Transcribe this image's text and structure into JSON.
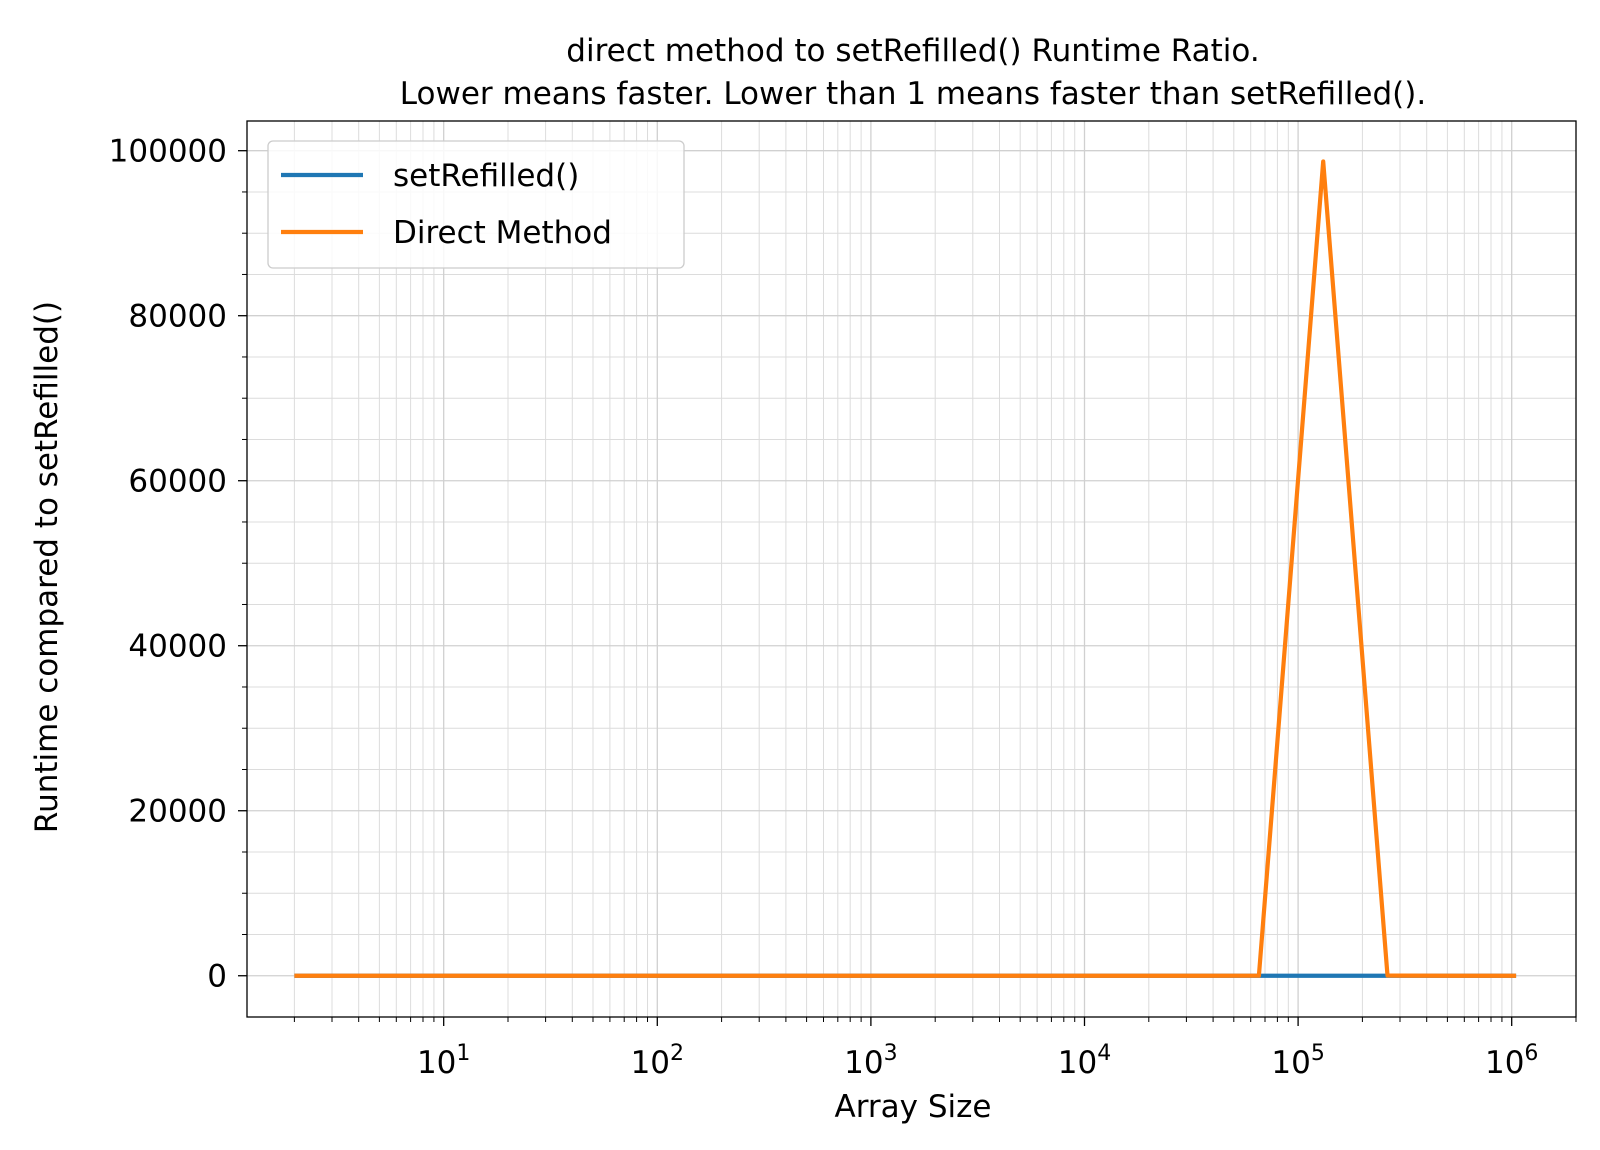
{
  "chart_data": {
    "type": "line",
    "title": "direct method to setRefilled() Runtime Ratio.",
    "subtitle": "Lower means faster. Lower than 1 means faster than setRefilled().",
    "xlabel": "Array Size",
    "ylabel": "Runtime compared to setRefilled()",
    "x_scale": "log",
    "y_scale": "linear",
    "grid": true,
    "legend_position": "top-left",
    "xlim": [
      1.2,
      2000000
    ],
    "ylim": [
      -5000,
      103600
    ],
    "x_ticks": [
      10,
      100,
      1000,
      10000,
      100000,
      1000000
    ],
    "x_tick_labels": [
      {
        "base": "10",
        "exp": "1"
      },
      {
        "base": "10",
        "exp": "2"
      },
      {
        "base": "10",
        "exp": "3"
      },
      {
        "base": "10",
        "exp": "4"
      },
      {
        "base": "10",
        "exp": "5"
      },
      {
        "base": "10",
        "exp": "6"
      }
    ],
    "y_ticks": [
      0,
      20000,
      40000,
      60000,
      80000,
      100000
    ],
    "y_tick_labels": [
      "0",
      "20000",
      "40000",
      "60000",
      "80000",
      "100000"
    ],
    "x": [
      2,
      4,
      8,
      16,
      32,
      64,
      128,
      256,
      512,
      1024,
      2048,
      4096,
      8192,
      16384,
      32768,
      65536,
      131072,
      262144,
      524288,
      1048576
    ],
    "series": [
      {
        "name": "setRefilled()",
        "color": "#1f77b4",
        "values": [
          1,
          1,
          1,
          1,
          1,
          1,
          1,
          1,
          1,
          1,
          1,
          1,
          1,
          1,
          1,
          1,
          1,
          1,
          1,
          1
        ]
      },
      {
        "name": "Direct Method",
        "color": "#ff7f0e",
        "values": [
          1.2,
          1.1,
          1.0,
          1.0,
          1.0,
          1.0,
          1.0,
          1.0,
          1.0,
          1.0,
          1.0,
          1.0,
          1.0,
          1.0,
          1.0,
          5,
          98700,
          20,
          1.0,
          1.0
        ]
      }
    ]
  }
}
